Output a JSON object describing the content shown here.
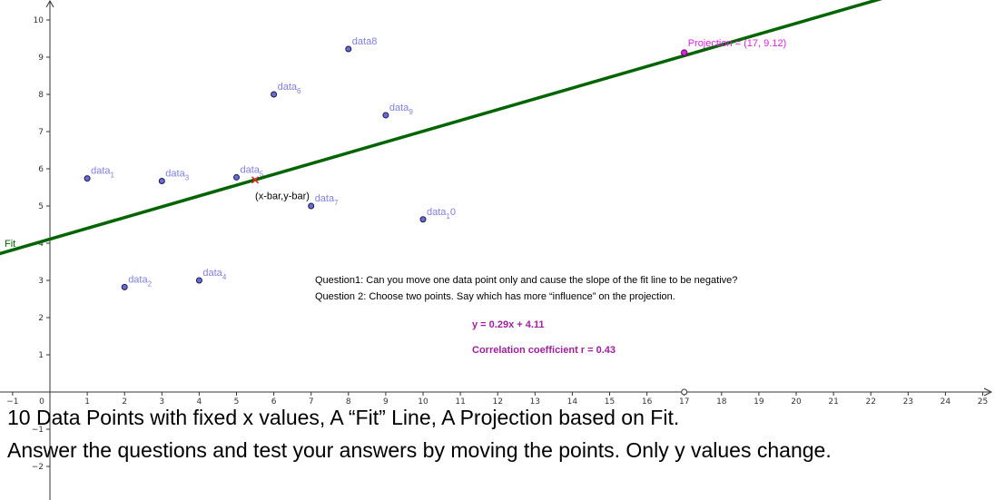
{
  "chart_data": {
    "type": "scatter",
    "xlim": [
      -1,
      25
    ],
    "ylim": [
      -2,
      10
    ],
    "x_ticks": [
      -1,
      0,
      1,
      2,
      3,
      4,
      5,
      6,
      7,
      8,
      9,
      10,
      11,
      12,
      13,
      14,
      15,
      16,
      17,
      18,
      19,
      20,
      21,
      22,
      23,
      24,
      25
    ],
    "y_ticks": [
      -2,
      -1,
      1,
      2,
      3,
      4,
      5,
      6,
      7,
      8,
      9,
      10
    ],
    "grid": false,
    "points": [
      {
        "label": "data1",
        "label_main": "data",
        "label_sub": "1",
        "x": 1,
        "y": 5.74
      },
      {
        "label": "data2",
        "label_main": "data",
        "label_sub": "2",
        "x": 2,
        "y": 2.82
      },
      {
        "label": "data3",
        "label_main": "data",
        "label_sub": "3",
        "x": 3,
        "y": 5.67
      },
      {
        "label": "data4",
        "label_main": "data",
        "label_sub": "4",
        "x": 4,
        "y": 3.0
      },
      {
        "label": "data5",
        "label_main": "data",
        "label_sub": "5",
        "x": 5,
        "y": 5.77
      },
      {
        "label": "data6",
        "label_main": "data",
        "label_sub": "6",
        "x": 6,
        "y": 8.0
      },
      {
        "label": "data7",
        "label_main": "data",
        "label_sub": "7",
        "x": 7,
        "y": 5.0
      },
      {
        "label": "data8",
        "label_main": "data8",
        "label_sub": "",
        "x": 8,
        "y": 9.22
      },
      {
        "label": "data9",
        "label_main": "data",
        "label_sub": "9",
        "x": 9,
        "y": 7.44
      },
      {
        "label": "data10",
        "label_main": "data",
        "label_sub": "1",
        "label_tail": "0",
        "x": 10,
        "y": 4.64
      }
    ],
    "fit_line": {
      "label": "Fit",
      "slope": 0.29,
      "intercept": 4.11,
      "color": "#006400"
    },
    "mean_point": {
      "label": "(x-bar,y-bar)",
      "x": 5.5,
      "y": 5.7,
      "color": "#e8232a"
    },
    "projection": {
      "label": "Projection = (17, 9.12)",
      "x": 17,
      "y": 9.12,
      "color": "#e020e0"
    },
    "slider_point": {
      "x": 17,
      "y": 0
    }
  },
  "colors": {
    "point_fill": "#6b6bd6",
    "point_label": "#7f7fe0",
    "equation": "#a020a0"
  },
  "notes": {
    "question1": "Question1:  Can you move one data point only and cause the slope of the fit line to be negative?",
    "question2": "Question 2:  Choose two points.  Say which has more “influence” on the projection."
  },
  "equation": "y = 0.29x + 4.11",
  "correlation": "Correlation coefficient r = 0.43",
  "caption": {
    "line1": "10 Data Points with fixed x values, A “Fit” Line, A Projection based on Fit.",
    "line2": "Answer the questions and test your answers by moving the points.  Only y values change."
  }
}
